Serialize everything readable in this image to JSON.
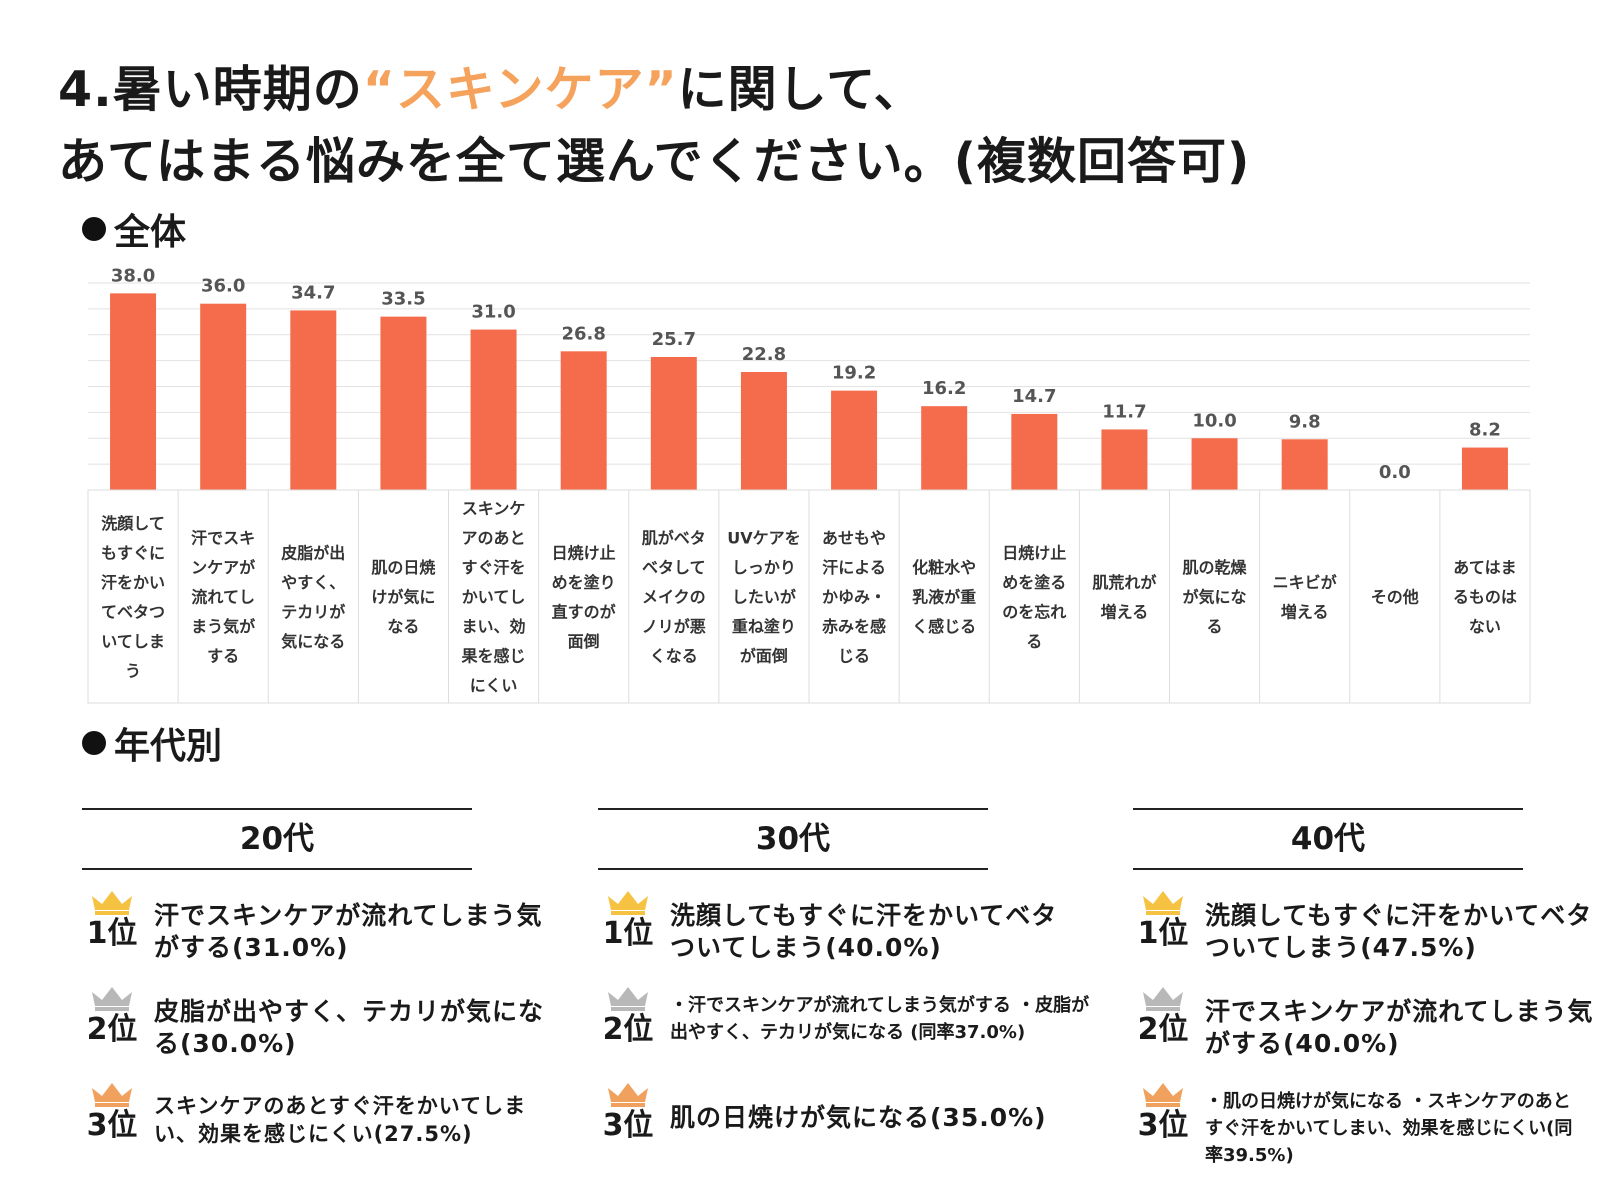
{
  "title": {
    "line1_prefix": "4.暑い時期の",
    "line1_accent": "“スキンケア”",
    "line1_suffix": "に関して、",
    "line2": "あてはまる悩みを全て選んでください。(複数回答可)"
  },
  "sections": {
    "overall": "全体",
    "by_age": "年代別"
  },
  "colors": {
    "bar": "#f56c4c",
    "accent": "#f5a35c",
    "gold": "#f5c242",
    "silver": "#b8b8b8",
    "bronze": "#f0a15e"
  },
  "chart_data": {
    "type": "bar",
    "title": "全体",
    "ylim": [
      0,
      40
    ],
    "grid": true,
    "categories": [
      "洗顔してもすぐに汗をかいてベタついてしまう",
      "汗でスキンケアが流れてしまう気がする",
      "皮脂が出やすく、テカリが気になる",
      "肌の日焼けが気になる",
      "スキンケアのあとすぐ汗をかいてしまい、効果を感じにくい",
      "日焼け止めを塗り直すのが面倒",
      "肌がベタベタしてメイクのノリが悪くなる",
      "UVケアをしっかりしたいが重ね塗りが面倒",
      "あせもや汗によるかゆみ・赤みを感じる",
      "化粧水や乳液が重く感じる",
      "日焼け止めを塗るのを忘れる",
      "肌荒れが増える",
      "肌の乾燥が気になる",
      "ニキビが増える",
      "その他",
      "あてはまるものはない"
    ],
    "category_lines": [
      [
        "洗顔して",
        "もすぐに",
        "汗をかい",
        "てベタつ",
        "いてしま",
        "う"
      ],
      [
        "汗でスキ",
        "ンケアが",
        "流れてし",
        "まう気が",
        "する"
      ],
      [
        "皮脂が出",
        "やすく、",
        "テカリが",
        "気になる"
      ],
      [
        "肌の日焼",
        "けが気に",
        "なる"
      ],
      [
        "スキンケ",
        "アのあと",
        "すぐ汗を",
        "かいてし",
        "まい、効",
        "果を感じ",
        "にくい"
      ],
      [
        "日焼け止",
        "めを塗り",
        "直すのが",
        "面倒"
      ],
      [
        "肌がベタ",
        "ベタして",
        "メイクの",
        "ノリが悪",
        "くなる"
      ],
      [
        "UVケアを",
        "しっかり",
        "したいが",
        "重ね塗り",
        "が面倒"
      ],
      [
        "あせもや",
        "汗による",
        "かゆみ・",
        "赤みを感",
        "じる"
      ],
      [
        "化粧水や",
        "乳液が重",
        "く感じる"
      ],
      [
        "日焼け止",
        "めを塗る",
        "のを忘れ",
        "る"
      ],
      [
        "肌荒れが",
        "増える"
      ],
      [
        "肌の乾燥",
        "が気にな",
        "る"
      ],
      [
        "ニキビが",
        "増える"
      ],
      [
        "その他"
      ],
      [
        "あてはま",
        "るものは",
        "ない"
      ]
    ],
    "values": [
      38.0,
      36.0,
      34.7,
      33.5,
      31.0,
      26.8,
      25.7,
      22.8,
      19.2,
      16.2,
      14.7,
      11.7,
      10.0,
      9.8,
      0.0,
      8.2
    ],
    "value_labels": [
      "38.0",
      "36.0",
      "34.7",
      "33.5",
      "31.0",
      "26.8",
      "25.7",
      "22.8",
      "19.2",
      "16.2",
      "14.7",
      "11.7",
      "10.0",
      "9.8",
      "0.0",
      "8.2"
    ]
  },
  "age_groups": [
    {
      "label": "20代",
      "ranks": [
        {
          "rank": "1位",
          "medal": "gold",
          "text": "汗でスキンケアが流れてしまう気がする(31.0%)"
        },
        {
          "rank": "2位",
          "medal": "silver",
          "text": "皮脂が出やすく、テカリが気になる(30.0%)"
        },
        {
          "rank": "3位",
          "medal": "bronze",
          "text": "スキンケアのあとすぐ汗をかいてしまい、効果を感じにくい(27.5%)"
        }
      ]
    },
    {
      "label": "30代",
      "ranks": [
        {
          "rank": "1位",
          "medal": "gold",
          "text": "洗顔してもすぐに汗をかいてベタついてしまう(40.0%)"
        },
        {
          "rank": "2位",
          "medal": "silver",
          "text": "・汗でスキンケアが流れてしまう気がする ・皮脂が出やすく、テカリが気になる (同率37.0%)"
        },
        {
          "rank": "3位",
          "medal": "bronze",
          "text": "肌の日焼けが気になる(35.0%)"
        }
      ]
    },
    {
      "label": "40代",
      "ranks": [
        {
          "rank": "1位",
          "medal": "gold",
          "text": "洗顔してもすぐに汗をかいてベタついてしまう(47.5%)"
        },
        {
          "rank": "2位",
          "medal": "silver",
          "text": "汗でスキンケアが流れてしまう気がする(40.0%)"
        },
        {
          "rank": "3位",
          "medal": "bronze",
          "text": "・肌の日焼けが気になる ・スキンケアのあとすぐ汗をかいてしまい、効果を感じにくい(同率39.5%)"
        }
      ]
    }
  ]
}
